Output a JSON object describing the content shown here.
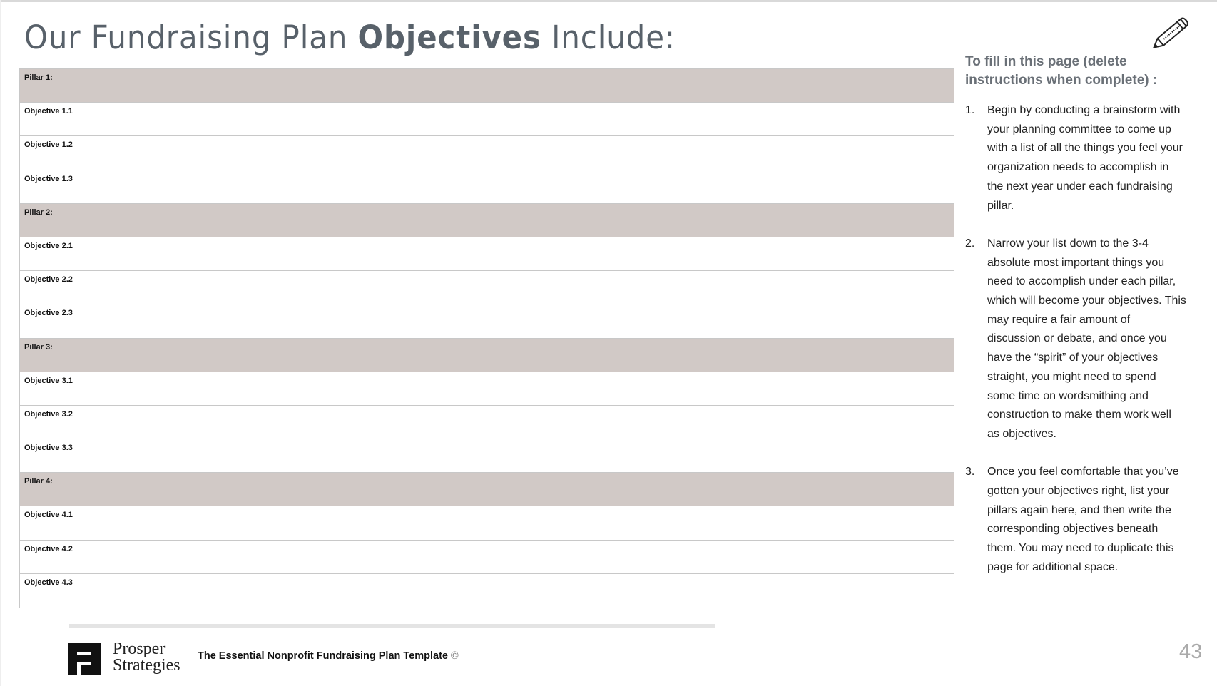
{
  "title": {
    "part1": "Our Fundraising Plan ",
    "bold": "Objectives",
    "part2": " Include:"
  },
  "rows": [
    {
      "label": "Pillar 1:",
      "type": "pillar"
    },
    {
      "label": "Objective 1.1",
      "type": "objective"
    },
    {
      "label": "Objective 1.2",
      "type": "objective"
    },
    {
      "label": "Objective 1.3",
      "type": "objective"
    },
    {
      "label": "Pillar 2:",
      "type": "pillar"
    },
    {
      "label": "Objective 2.1",
      "type": "objective"
    },
    {
      "label": "Objective 2.2",
      "type": "objective"
    },
    {
      "label": "Objective 2.3",
      "type": "objective"
    },
    {
      "label": "Pillar 3:",
      "type": "pillar"
    },
    {
      "label": "Objective 3.1",
      "type": "objective"
    },
    {
      "label": "Objective 3.2",
      "type": "objective"
    },
    {
      "label": "Objective 3.3",
      "type": "objective"
    },
    {
      "label": "Pillar 4:",
      "type": "pillar"
    },
    {
      "label": "Objective 4.1",
      "type": "objective"
    },
    {
      "label": "Objective 4.2",
      "type": "objective"
    },
    {
      "label": "Objective 4.3",
      "type": "objective"
    }
  ],
  "instructions": {
    "heading": "To fill in this page (delete instructions when complete) :",
    "items": [
      {
        "num": "1.",
        "text": "Begin by conducting a brainstorm with your planning committee to come up with a list of all the things you feel your organization needs to accomplish in the next year under each fundraising pillar."
      },
      {
        "num": "2.",
        "text": "Narrow your list down to the 3-4 absolute most important things you need to accomplish under each pillar, which will become your objectives. This may require a fair amount of discussion or debate, and once you have the “spirit” of your objectives straight, you might need to spend some time on wordsmithing and construction to make them work well as objectives."
      },
      {
        "num": "3.",
        "text": "Once you feel comfortable that you’ve gotten your objectives right, list your pillars again here, and then write the corresponding objectives beneath them. You may need to duplicate this page for additional space."
      }
    ]
  },
  "footer": {
    "brand_line1": "Prosper",
    "brand_line2": "Strategies",
    "text": "The Essential Nonprofit Fundraising Plan Template",
    "copyright": "©",
    "page_number": "43"
  },
  "colors": {
    "pillar_bg": "#d1c9c6",
    "title": "#58616a"
  },
  "icons": {
    "pencil": "pencil-icon",
    "logo": "prosper-strategies-logo"
  }
}
